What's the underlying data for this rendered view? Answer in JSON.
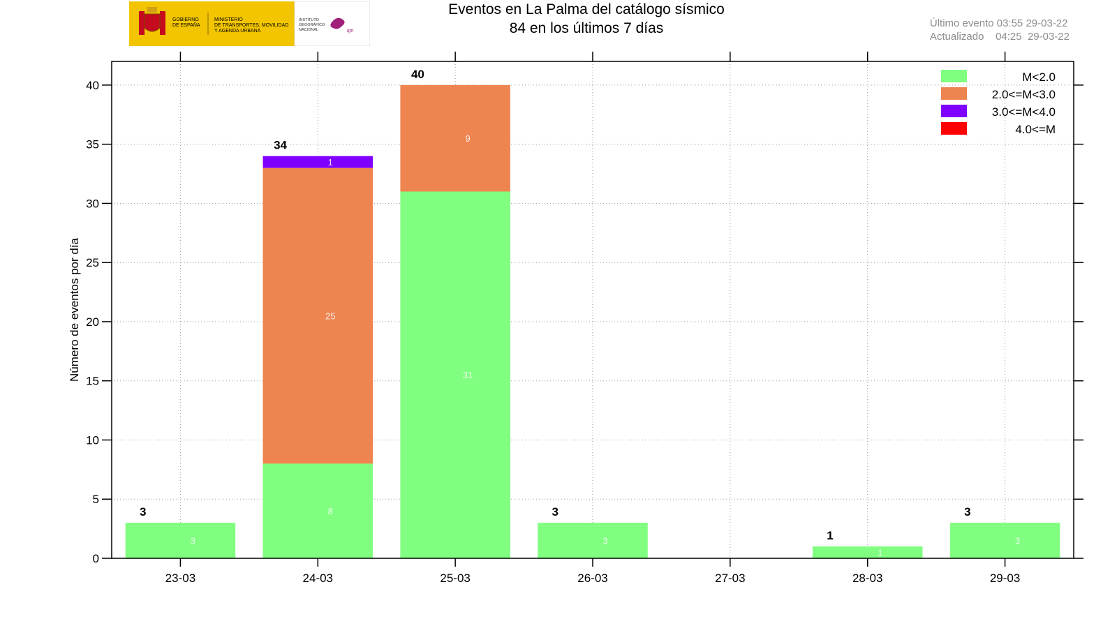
{
  "header": {
    "title": "Eventos en La Palma del catálogo sísmico",
    "subtitle": "84 en los últimos 7 días",
    "last_event": "Último evento 03:55 29-03-22",
    "updated": "Actualizado    04:25  29-03-22",
    "logo": {
      "gov_line1": "GOBIERNO",
      "gov_line2": "DE ESPAÑA",
      "ministry_line1": "MINISTERIO",
      "ministry_line2": "DE TRANSPORTES, MOVILIDAD",
      "ministry_line3": "Y AGENDA URBANA",
      "ign_line1": "INSTITUTO",
      "ign_line2": "GEOGRÁFICO",
      "ign_line3": "NACIONAL",
      "ign_mark": "ign"
    }
  },
  "chart_data": {
    "type": "bar",
    "stacked": true,
    "title": "Eventos en La Palma del catálogo sísmico",
    "subtitle": "84 en los últimos 7 días",
    "xlabel": "",
    "ylabel": "Número de eventos por día",
    "ylim": [
      0,
      42
    ],
    "yticks": [
      0,
      5,
      10,
      15,
      20,
      25,
      30,
      35,
      40
    ],
    "grid": true,
    "legend_position": "top-right",
    "categories": [
      "23-03",
      "24-03",
      "25-03",
      "26-03",
      "27-03",
      "28-03",
      "29-03"
    ],
    "series": [
      {
        "name": "M<2.0",
        "color": "#80ff80",
        "values": [
          3,
          8,
          31,
          3,
          0,
          1,
          3
        ]
      },
      {
        "name": "2.0<=M<3.0",
        "color": "#ee8450",
        "values": [
          0,
          25,
          9,
          0,
          0,
          0,
          0
        ]
      },
      {
        "name": "3.0<=M<4.0",
        "color": "#8000ff",
        "values": [
          0,
          1,
          0,
          0,
          0,
          0,
          0
        ]
      },
      {
        "name": "4.0<=M",
        "color": "#ff0000",
        "values": [
          0,
          0,
          0,
          0,
          0,
          0,
          0
        ]
      }
    ],
    "totals": [
      3,
      34,
      40,
      3,
      null,
      1,
      3
    ]
  }
}
